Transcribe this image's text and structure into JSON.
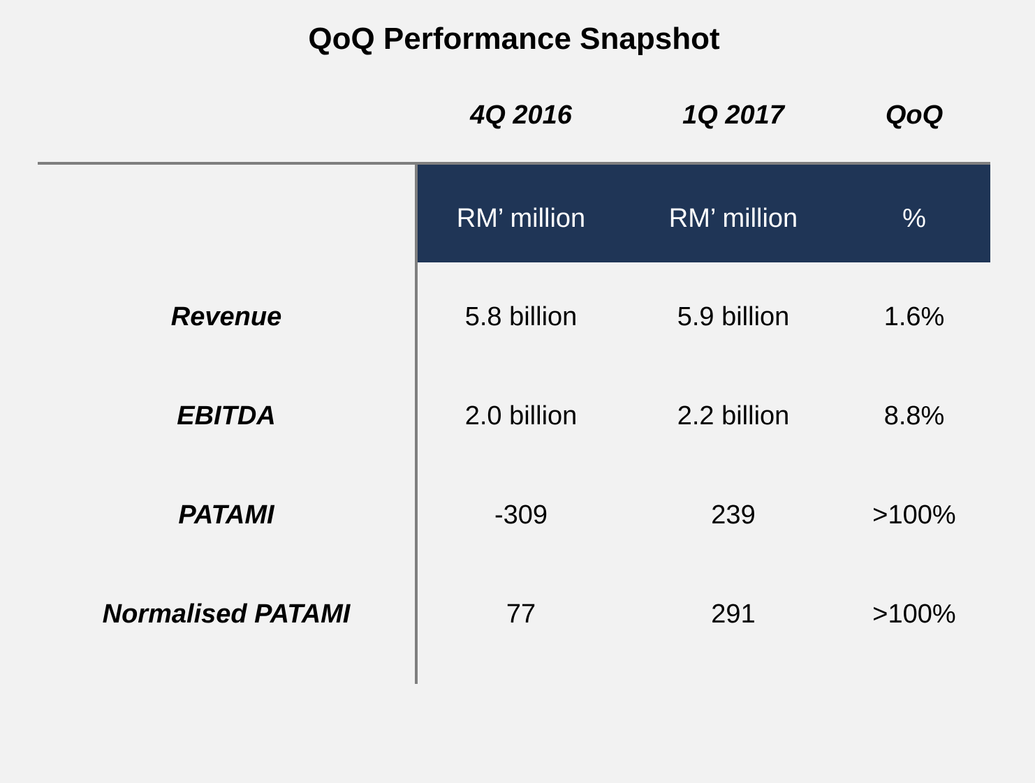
{
  "chart_data": {
    "type": "table",
    "title": "QoQ Performance Snapshot",
    "columns": [
      {
        "header": "4Q 2016",
        "unit": "RM’ million"
      },
      {
        "header": "1Q 2017",
        "unit": "RM’ million"
      },
      {
        "header": "QoQ",
        "unit": "%"
      }
    ],
    "rows": [
      {
        "label": "Revenue",
        "cells": [
          "5.8 billion",
          "5.9 billion",
          "1.6%"
        ]
      },
      {
        "label": "EBITDA",
        "cells": [
          "2.0 billion",
          "2.2 billion",
          "8.8%"
        ]
      },
      {
        "label": "PATAMI",
        "cells": [
          "-309",
          "239",
          ">100%"
        ]
      },
      {
        "label": "Normalised PATAMI",
        "cells": [
          "77",
          "291",
          ">100%"
        ]
      }
    ]
  },
  "colors": {
    "header_band": "#1f3556",
    "divider": "#7f7f7f",
    "background": "#f2f2f2"
  }
}
